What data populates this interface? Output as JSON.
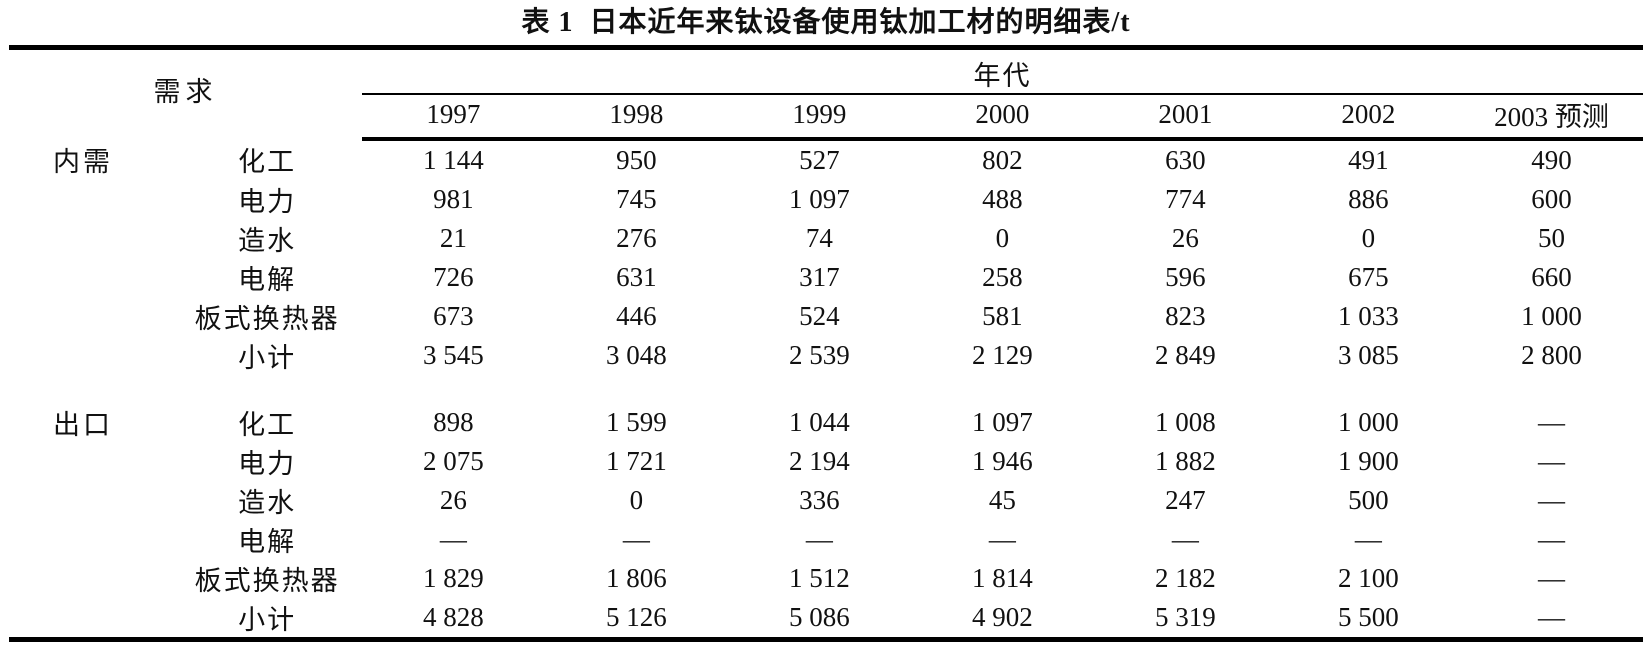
{
  "title": "表 1  日本近年来钛设备使用钛加工材的明细表/t",
  "table": {
    "demand_header": "需求",
    "era_header": "年代",
    "year_columns": [
      "1997",
      "1998",
      "1999",
      "2000",
      "2001",
      "2002",
      "2003 预测"
    ],
    "sections": [
      {
        "group": "内需",
        "rows": [
          {
            "category": "化工",
            "values": [
              "1 144",
              "950",
              "527",
              "802",
              "630",
              "491",
              "490"
            ]
          },
          {
            "category": "电力",
            "values": [
              "981",
              "745",
              "1 097",
              "488",
              "774",
              "886",
              "600"
            ]
          },
          {
            "category": "造水",
            "values": [
              "21",
              "276",
              "74",
              "0",
              "26",
              "0",
              "50"
            ]
          },
          {
            "category": "电解",
            "values": [
              "726",
              "631",
              "317",
              "258",
              "596",
              "675",
              "660"
            ]
          },
          {
            "category": "板式换热器",
            "values": [
              "673",
              "446",
              "524",
              "581",
              "823",
              "1 033",
              "1 000"
            ]
          },
          {
            "category": "小计",
            "values": [
              "3 545",
              "3 048",
              "2 539",
              "2 129",
              "2 849",
              "3 085",
              "2 800"
            ]
          }
        ]
      },
      {
        "group": "出口",
        "rows": [
          {
            "category": "化工",
            "values": [
              "898",
              "1 599",
              "1 044",
              "1 097",
              "1 008",
              "1 000",
              "—"
            ]
          },
          {
            "category": "电力",
            "values": [
              "2 075",
              "1 721",
              "2 194",
              "1 946",
              "1 882",
              "1 900",
              "—"
            ]
          },
          {
            "category": "造水",
            "values": [
              "26",
              "0",
              "336",
              "45",
              "247",
              "500",
              "—"
            ]
          },
          {
            "category": "电解",
            "values": [
              "—",
              "—",
              "—",
              "—",
              "—",
              "—",
              "—"
            ]
          },
          {
            "category": "板式换热器",
            "values": [
              "1 829",
              "1 806",
              "1 512",
              "1 814",
              "2 182",
              "2 100",
              "—"
            ]
          },
          {
            "category": "小计",
            "values": [
              "4 828",
              "5 126",
              "5 086",
              "4 902",
              "5 319",
              "5 500",
              "—"
            ]
          }
        ]
      }
    ]
  }
}
